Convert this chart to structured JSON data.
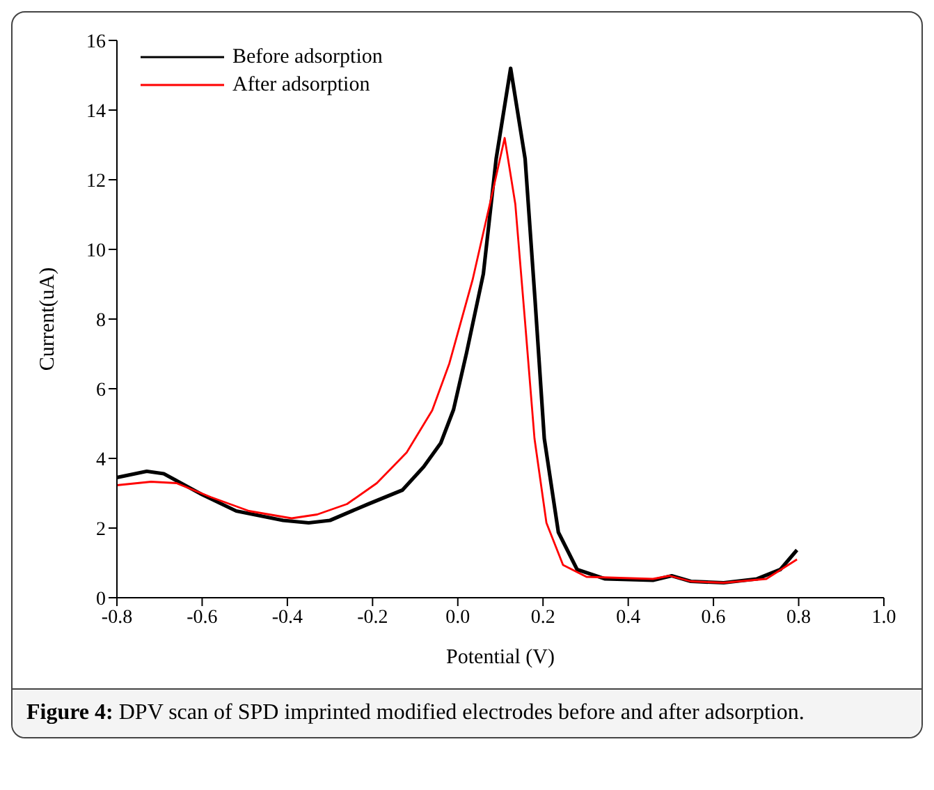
{
  "chart_data": {
    "type": "line",
    "xlabel": "Potential (V)",
    "ylabel": "Current(uA)",
    "annotations": [
      "Figure 4:",
      "DPV scan of SPD imprinted modified electrodes before and after adsorption."
    ],
    "xlim": [
      -0.8,
      1.0
    ],
    "xticks": [
      -0.8,
      -0.6,
      -0.4,
      -0.2,
      {
        "value": 0,
        "label": "0.0"
      },
      0.2,
      0.4,
      0.6,
      0.8,
      {
        "value": 1,
        "label": "1.0"
      }
    ],
    "ylim": [
      0,
      16
    ],
    "yticks": [
      0,
      2,
      4,
      6,
      8,
      10,
      12,
      14,
      16
    ],
    "grid": false,
    "legend": "top left",
    "marker": "none",
    "line_style": "solid",
    "series": [
      {
        "name": "Before adsorption",
        "color": "#000000",
        "x": [
          -0.8,
          -0.73,
          -0.69,
          -0.6,
          -0.52,
          -0.41,
          -0.35,
          -0.3,
          -0.21,
          -0.13,
          -0.08,
          -0.04,
          -0.01,
          0.02,
          0.06,
          0.09,
          0.124,
          0.158,
          0.181,
          0.203,
          0.236,
          0.28,
          0.346,
          0.458,
          0.502,
          0.547,
          0.624,
          0.702,
          0.757,
          0.796
        ],
        "values": [
          3.45,
          3.63,
          3.56,
          2.96,
          2.49,
          2.22,
          2.15,
          2.22,
          2.69,
          3.09,
          3.76,
          4.44,
          5.4,
          7.0,
          9.3,
          12.6,
          15.2,
          12.6,
          8.6,
          4.57,
          1.88,
          0.81,
          0.54,
          0.5,
          0.63,
          0.47,
          0.43,
          0.54,
          0.81,
          1.37
        ]
      },
      {
        "name": "After adsorption",
        "color": "#ff0000",
        "x": [
          -0.8,
          -0.72,
          -0.66,
          -0.58,
          -0.49,
          -0.39,
          -0.33,
          -0.26,
          -0.19,
          -0.12,
          -0.06,
          -0.02,
          0.035,
          0.08,
          0.11,
          0.135,
          0.158,
          0.18,
          0.208,
          0.247,
          0.302,
          0.458,
          0.497,
          0.547,
          0.624,
          0.724,
          0.796
        ],
        "values": [
          3.23,
          3.33,
          3.29,
          2.89,
          2.49,
          2.28,
          2.39,
          2.69,
          3.29,
          4.17,
          5.38,
          6.72,
          9.14,
          11.56,
          13.2,
          11.3,
          7.9,
          4.57,
          2.15,
          0.94,
          0.6,
          0.54,
          0.63,
          0.47,
          0.43,
          0.54,
          1.1
        ]
      }
    ]
  }
}
